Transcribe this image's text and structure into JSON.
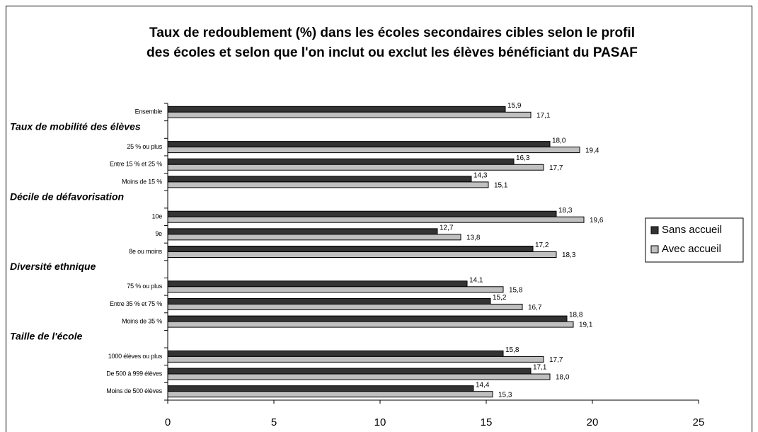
{
  "chart_data": {
    "type": "bar",
    "orientation": "horizontal",
    "title": [
      "Taux de redoublement (%) dans les écoles secondaires cibles selon le profil",
      "des écoles et selon que l'on inclut ou exclut les élèves bénéficiant du PASAF"
    ],
    "categories": [
      "Ensemble",
      "Taux de mobilité des élèves",
      "25 % ou plus",
      "Entre 15 % et 25 %",
      "Moins de 15 %",
      "Décile de défavorisation",
      "10e",
      "9e",
      "8e ou moins",
      "Diversité ethnique",
      "75 % ou plus",
      "Entre 35 % et 75 %",
      "Moins de 35 %",
      "Taille de l'école",
      "1000 élèves ou plus",
      "De 500 à 999 élèves",
      "Moins de 500 élèves"
    ],
    "series": [
      {
        "name": "Sans accueil",
        "color": "#333333",
        "values": [
          15.9,
          null,
          18.0,
          16.3,
          14.3,
          null,
          18.3,
          12.7,
          17.2,
          null,
          14.1,
          15.2,
          18.8,
          null,
          15.8,
          17.1,
          14.4
        ],
        "value_labels": [
          "15,9",
          null,
          "18,0",
          "16,3",
          "14,3",
          null,
          "18,3",
          "12,7",
          "17,2",
          null,
          "14,1",
          "15,2",
          "18,8",
          null,
          "15,8",
          "17,1",
          "14,4"
        ]
      },
      {
        "name": "Avec accueil",
        "color": "#c0c0c0",
        "values": [
          17.1,
          null,
          19.4,
          17.7,
          15.1,
          null,
          19.6,
          13.8,
          18.3,
          null,
          15.8,
          16.7,
          19.1,
          null,
          17.7,
          18.0,
          15.3
        ],
        "value_labels": [
          "17,1",
          null,
          "19,4",
          "17,7",
          "15,1",
          null,
          "19,6",
          "13,8",
          "18,3",
          null,
          "15,8",
          "16,7",
          "19,1",
          null,
          "17,7",
          "18,0",
          "15,3"
        ]
      }
    ],
    "xlim": [
      0,
      25
    ],
    "xticks": [
      0,
      5,
      10,
      15,
      20,
      25
    ],
    "legend": "right"
  }
}
